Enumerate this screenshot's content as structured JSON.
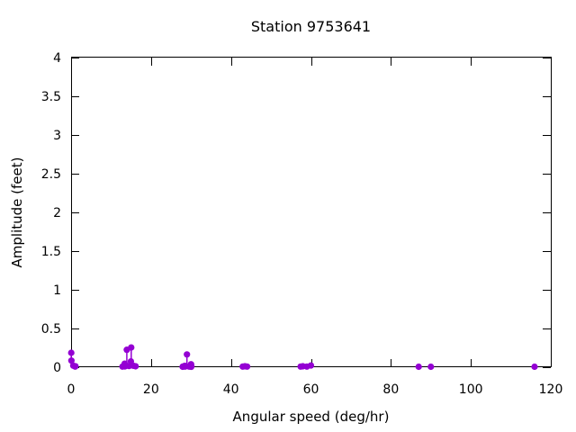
{
  "chart_data": {
    "type": "scatter",
    "title": "Station 9753641",
    "xlabel": "Angular speed (deg/hr)",
    "ylabel": "Amplitude (feet)",
    "xlim": [
      0,
      120
    ],
    "ylim": [
      0,
      4
    ],
    "xticks": [
      0,
      20,
      40,
      60,
      80,
      100,
      120
    ],
    "xtick_labels": [
      "0",
      "20",
      "40",
      "60",
      "80",
      "100",
      "120"
    ],
    "yticks": [
      0,
      0.5,
      1,
      1.5,
      2,
      2.5,
      3,
      3.5,
      4
    ],
    "ytick_labels": [
      "0",
      "0.5",
      "1",
      "1.5",
      "2",
      "2.5",
      "3",
      "3.5",
      "4"
    ],
    "grid": false,
    "legend": "none",
    "style": "points-with-impulses",
    "marker": "filled-circle",
    "colors": {
      "points": "#9400d3",
      "axis": "#000000",
      "text": "#000000",
      "background": "#ffffff"
    },
    "series": [
      {
        "name": "amplitudes",
        "points": [
          [
            0.04,
            0.186
          ],
          [
            0.08,
            0.085
          ],
          [
            0.54,
            0.02
          ],
          [
            1.02,
            0.008
          ],
          [
            1.1,
            0.012
          ],
          [
            12.85,
            0.008
          ],
          [
            13.4,
            0.046
          ],
          [
            13.47,
            0.01
          ],
          [
            13.94,
            0.225
          ],
          [
            14.49,
            0.015
          ],
          [
            14.96,
            0.075
          ],
          [
            15.04,
            0.255
          ],
          [
            15.59,
            0.018
          ],
          [
            16.14,
            0.012
          ],
          [
            27.9,
            0.006
          ],
          [
            27.97,
            0.008
          ],
          [
            28.44,
            0.018
          ],
          [
            28.51,
            0.008
          ],
          [
            28.98,
            0.165
          ],
          [
            29.53,
            0.008
          ],
          [
            29.96,
            0.01
          ],
          [
            30.0,
            0.038
          ],
          [
            30.04,
            0.005
          ],
          [
            30.08,
            0.014
          ],
          [
            42.93,
            0.008
          ],
          [
            43.48,
            0.012
          ],
          [
            44.03,
            0.008
          ],
          [
            57.42,
            0.008
          ],
          [
            57.97,
            0.012
          ],
          [
            58.98,
            0.008
          ],
          [
            60.0,
            0.022
          ],
          [
            86.95,
            0.006
          ],
          [
            90.0,
            0.006
          ],
          [
            115.94,
            0.006
          ]
        ]
      }
    ]
  }
}
